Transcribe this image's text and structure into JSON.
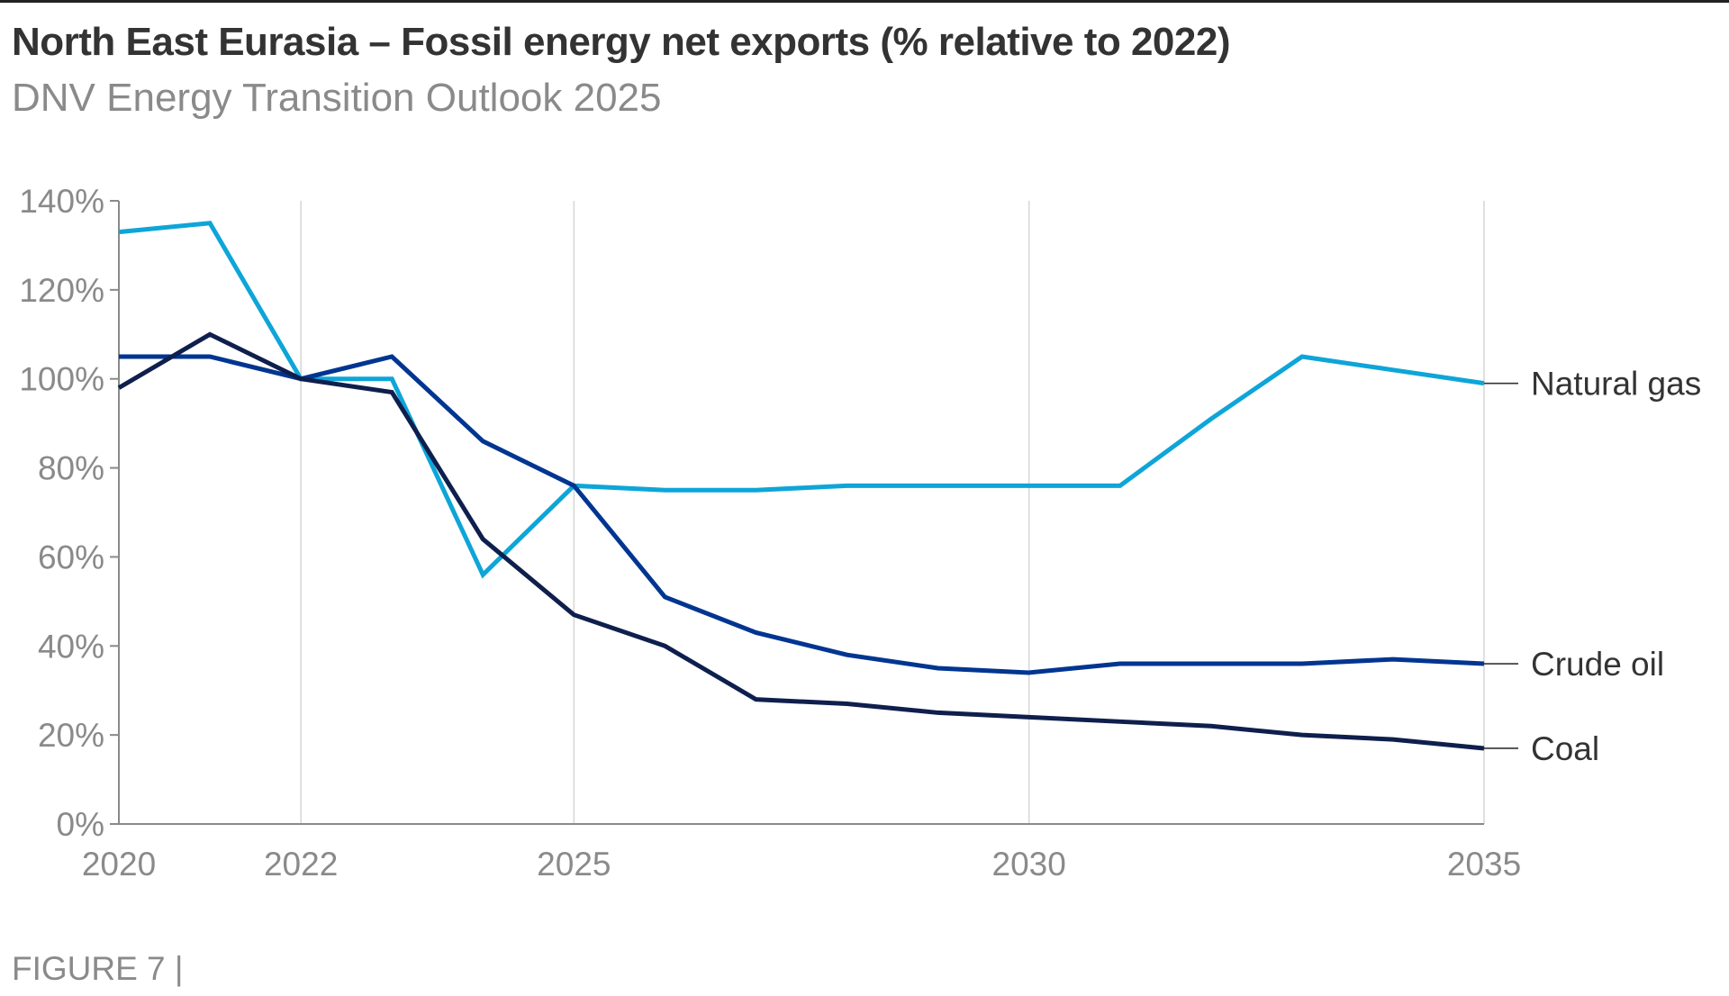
{
  "header": {
    "title": "North East Eurasia – Fossil energy net exports (% relative to 2022)",
    "subtitle": "DNV Energy Transition Outlook 2025"
  },
  "footer": {
    "figure_label": "FIGURE 7 |"
  },
  "chart_data": {
    "type": "line",
    "title": "North East Eurasia – Fossil energy net exports (% relative to 2022)",
    "subtitle": "DNV Energy Transition Outlook 2025",
    "xlabel": "",
    "ylabel": "",
    "x": [
      2020,
      2021,
      2022,
      2023,
      2024,
      2025,
      2026,
      2027,
      2028,
      2029,
      2030,
      2031,
      2032,
      2033,
      2034,
      2035
    ],
    "xlim": [
      2020,
      2035
    ],
    "ylim": [
      0,
      140
    ],
    "x_ticks": [
      2020,
      2022,
      2025,
      2030,
      2035
    ],
    "x_tick_labels": [
      "2020",
      "2022",
      "2025",
      "2030",
      "2035"
    ],
    "y_ticks": [
      0,
      20,
      40,
      60,
      80,
      100,
      120,
      140
    ],
    "y_tick_labels": [
      "0%",
      "20%",
      "40%",
      "60%",
      "80%",
      "100%",
      "120%",
      "140%"
    ],
    "vertical_gridlines_at": [
      2022,
      2025,
      2030,
      2035
    ],
    "legend": "direct-labels-right",
    "series": [
      {
        "name": "Natural gas",
        "color": "#0ea5d8",
        "values": [
          133,
          135,
          100,
          100,
          56,
          76,
          75,
          75,
          76,
          76,
          76,
          76,
          91,
          105,
          102,
          99
        ]
      },
      {
        "name": "Crude oil",
        "color": "#003591",
        "values": [
          105,
          105,
          100,
          105,
          86,
          76,
          51,
          43,
          38,
          35,
          34,
          36,
          36,
          36,
          37,
          36
        ]
      },
      {
        "name": "Coal",
        "color": "#0f1f4d",
        "values": [
          98,
          110,
          100,
          97,
          64,
          47,
          40,
          28,
          27,
          25,
          24,
          23,
          22,
          20,
          19,
          17
        ]
      }
    ]
  }
}
